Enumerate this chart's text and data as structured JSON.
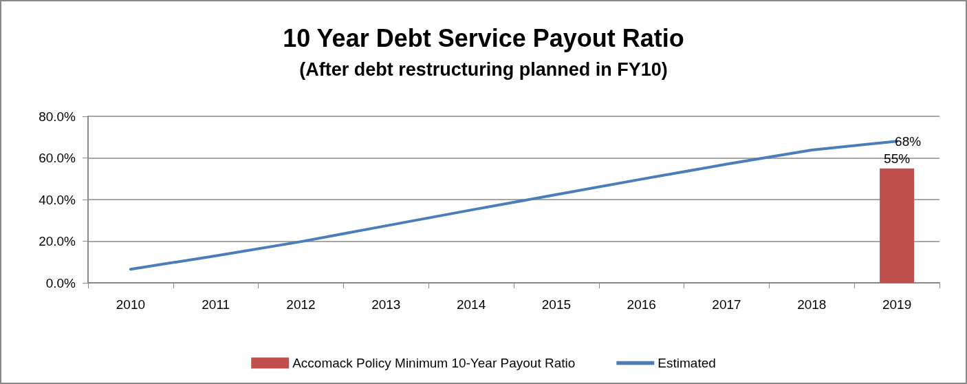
{
  "chart_data": {
    "type": "bar",
    "title": "10 Year Debt Service Payout Ratio",
    "subtitle": "(After debt restructuring planned in FY10)",
    "categories": [
      "2010",
      "2011",
      "2012",
      "2013",
      "2014",
      "2015",
      "2016",
      "2017",
      "2018",
      "2019"
    ],
    "series": [
      {
        "name": "Accomack Policy Minimum 10-Year Payout Ratio",
        "color": "#c0504d",
        "values": [
          null,
          null,
          null,
          null,
          null,
          null,
          null,
          null,
          null,
          55
        ],
        "value_labels": [
          null,
          null,
          null,
          null,
          null,
          null,
          null,
          null,
          null,
          "55%"
        ]
      },
      {
        "name": "Estimated",
        "type": "line",
        "color": "#4a7ebb",
        "values": [
          6.5,
          13,
          19.8,
          27.4,
          35,
          42.4,
          49.8,
          57,
          63.8,
          68
        ],
        "value_labels": [
          null,
          null,
          null,
          null,
          null,
          null,
          null,
          null,
          null,
          "68%"
        ]
      }
    ],
    "ylim": [
      0,
      80
    ],
    "yticks": [
      {
        "value": 0,
        "label": "0.0%"
      },
      {
        "value": 20,
        "label": "20.0%"
      },
      {
        "value": 40,
        "label": "40.0%"
      },
      {
        "value": 60,
        "label": "60.0%"
      },
      {
        "value": 80,
        "label": "80.0%"
      }
    ],
    "grid": "y",
    "legend": "bottom",
    "marker": "none"
  }
}
